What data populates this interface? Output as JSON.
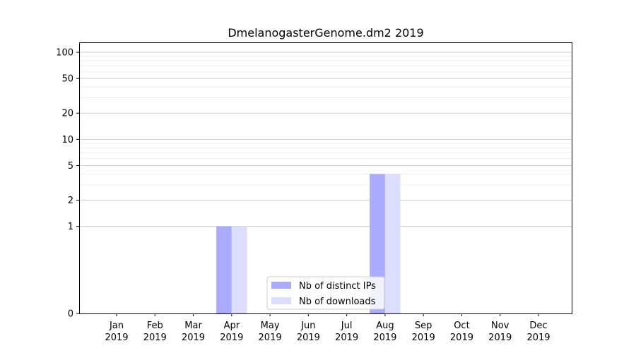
{
  "chart_data": {
    "type": "bar",
    "title": "DmelanogasterGenome.dm2 2019",
    "xlabel": "",
    "ylabel": "",
    "yscale": "symlog",
    "ylim": [
      0,
      130
    ],
    "y_ticks": [
      0,
      1,
      2,
      5,
      10,
      20,
      50,
      100
    ],
    "y_tick_labels": [
      "0",
      "1",
      "2",
      "5",
      "10",
      "20",
      "50",
      "100"
    ],
    "categories": [
      {
        "month": "Jan",
        "year": "2019"
      },
      {
        "month": "Feb",
        "year": "2019"
      },
      {
        "month": "Mar",
        "year": "2019"
      },
      {
        "month": "Apr",
        "year": "2019"
      },
      {
        "month": "May",
        "year": "2019"
      },
      {
        "month": "Jun",
        "year": "2019"
      },
      {
        "month": "Jul",
        "year": "2019"
      },
      {
        "month": "Aug",
        "year": "2019"
      },
      {
        "month": "Sep",
        "year": "2019"
      },
      {
        "month": "Oct",
        "year": "2019"
      },
      {
        "month": "Nov",
        "year": "2019"
      },
      {
        "month": "Dec",
        "year": "2019"
      }
    ],
    "series": [
      {
        "name": "Nb of distinct IPs",
        "color": "#aaaaff",
        "values": [
          0,
          0,
          0,
          1,
          0,
          0,
          0,
          4,
          0,
          0,
          0,
          0
        ]
      },
      {
        "name": "Nb of downloads",
        "color": "#ddddff",
        "values": [
          0,
          0,
          0,
          1,
          0,
          0,
          0,
          4,
          0,
          0,
          0,
          0
        ]
      }
    ],
    "grid": true,
    "legend_position": "bottom-center"
  }
}
